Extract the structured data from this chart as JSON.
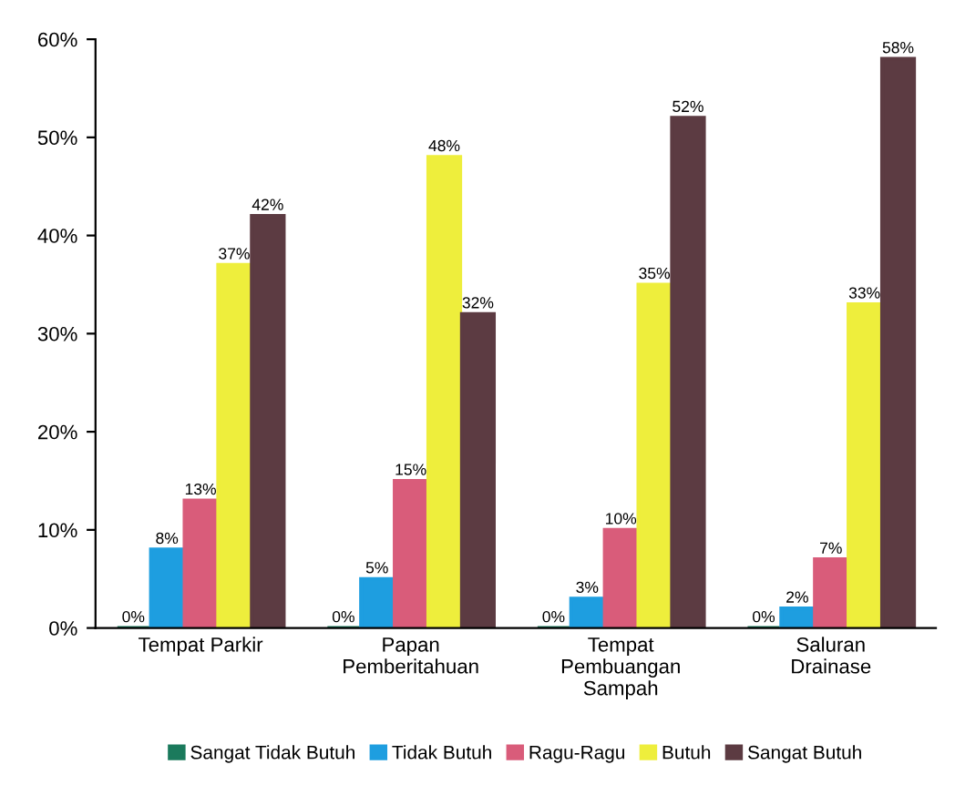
{
  "chart_data": {
    "type": "bar",
    "categories": [
      "Tempat Parkir",
      "Papan\nPemberitahuan",
      "Tempat\nPembuangan\nSampah",
      "Saluran\nDrainase"
    ],
    "series": [
      {
        "name": "Sangat Tidak Butuh",
        "color": "#1b7a5c",
        "values": [
          0,
          0,
          0,
          0
        ],
        "value_labels": [
          "0%",
          "0%",
          "0%",
          "0%"
        ]
      },
      {
        "name": "Tidak Butuh",
        "color": "#1e9ee0",
        "values": [
          8,
          5,
          3,
          2
        ],
        "value_labels": [
          "8%",
          "5%",
          "3%",
          "2%"
        ]
      },
      {
        "name": "Ragu-Ragu",
        "color": "#d95c7a",
        "values": [
          13,
          15,
          10,
          7
        ],
        "value_labels": [
          "13%",
          "15%",
          "10%",
          "7%"
        ]
      },
      {
        "name": "Butuh",
        "color": "#eeee3c",
        "values": [
          37,
          48,
          35,
          33
        ],
        "value_labels": [
          "37%",
          "48%",
          "35%",
          "33%"
        ]
      },
      {
        "name": "Sangat Butuh",
        "color": "#5c3b42",
        "values": [
          42,
          32,
          52,
          58
        ],
        "value_labels": [
          "42%",
          "32%",
          "52%",
          "58%"
        ]
      }
    ],
    "ylim": [
      0,
      60
    ],
    "yticks": [
      {
        "value": 0,
        "label": "0%"
      },
      {
        "value": 10,
        "label": "10%"
      },
      {
        "value": 20,
        "label": "20%"
      },
      {
        "value": 30,
        "label": "30%"
      },
      {
        "value": 40,
        "label": "40%"
      },
      {
        "value": 50,
        "label": "50%"
      },
      {
        "value": 60,
        "label": "60%"
      }
    ],
    "grid": false,
    "legend": "bottom"
  }
}
